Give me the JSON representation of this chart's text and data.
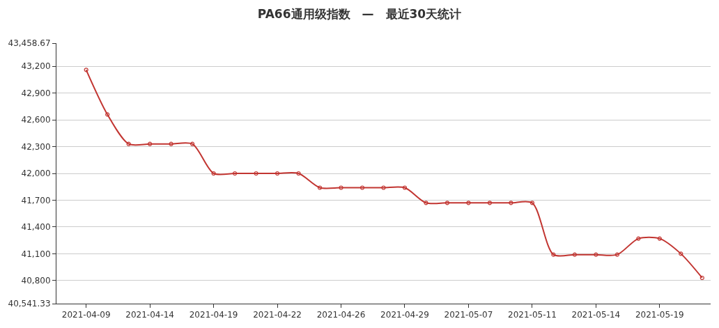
{
  "chart_data": {
    "type": "line",
    "title": "PA66通用级指数　—　最近30天统计",
    "categories": [
      "2021-04-09",
      null,
      null,
      "2021-04-14",
      null,
      null,
      "2021-04-19",
      null,
      null,
      "2021-04-22",
      null,
      null,
      "2021-04-26",
      null,
      null,
      "2021-04-29",
      null,
      null,
      "2021-05-07",
      null,
      null,
      "2021-05-11",
      null,
      null,
      "2021-05-14",
      null,
      null,
      "2021-05-19",
      null,
      null
    ],
    "series": [
      {
        "color": "#c23531",
        "values": [
          43160,
          42660,
          42330,
          42330,
          42330,
          42330,
          42000,
          42000,
          42000,
          42000,
          42000,
          41840,
          41840,
          41840,
          41840,
          41840,
          41670,
          41670,
          41670,
          41670,
          41670,
          41670,
          41090,
          41090,
          41090,
          41090,
          41270,
          41270,
          41100,
          40830
        ]
      }
    ],
    "ylim": [
      40541.33,
      43458.67
    ],
    "yticks": [
      {
        "value": 40541.33,
        "label": "40,541.33"
      },
      {
        "value": 40800,
        "label": "40,800"
      },
      {
        "value": 41100,
        "label": "41,100"
      },
      {
        "value": 41400,
        "label": "41,400"
      },
      {
        "value": 41700,
        "label": "41,700"
      },
      {
        "value": 42000,
        "label": "42,000"
      },
      {
        "value": 42300,
        "label": "42,300"
      },
      {
        "value": 42600,
        "label": "42,600"
      },
      {
        "value": 42900,
        "label": "42,900"
      },
      {
        "value": 43200,
        "label": "43,200"
      },
      {
        "value": 43458.67,
        "label": "43,458.67"
      }
    ],
    "grid": "y",
    "marker": "circle",
    "line_style": "solid"
  }
}
